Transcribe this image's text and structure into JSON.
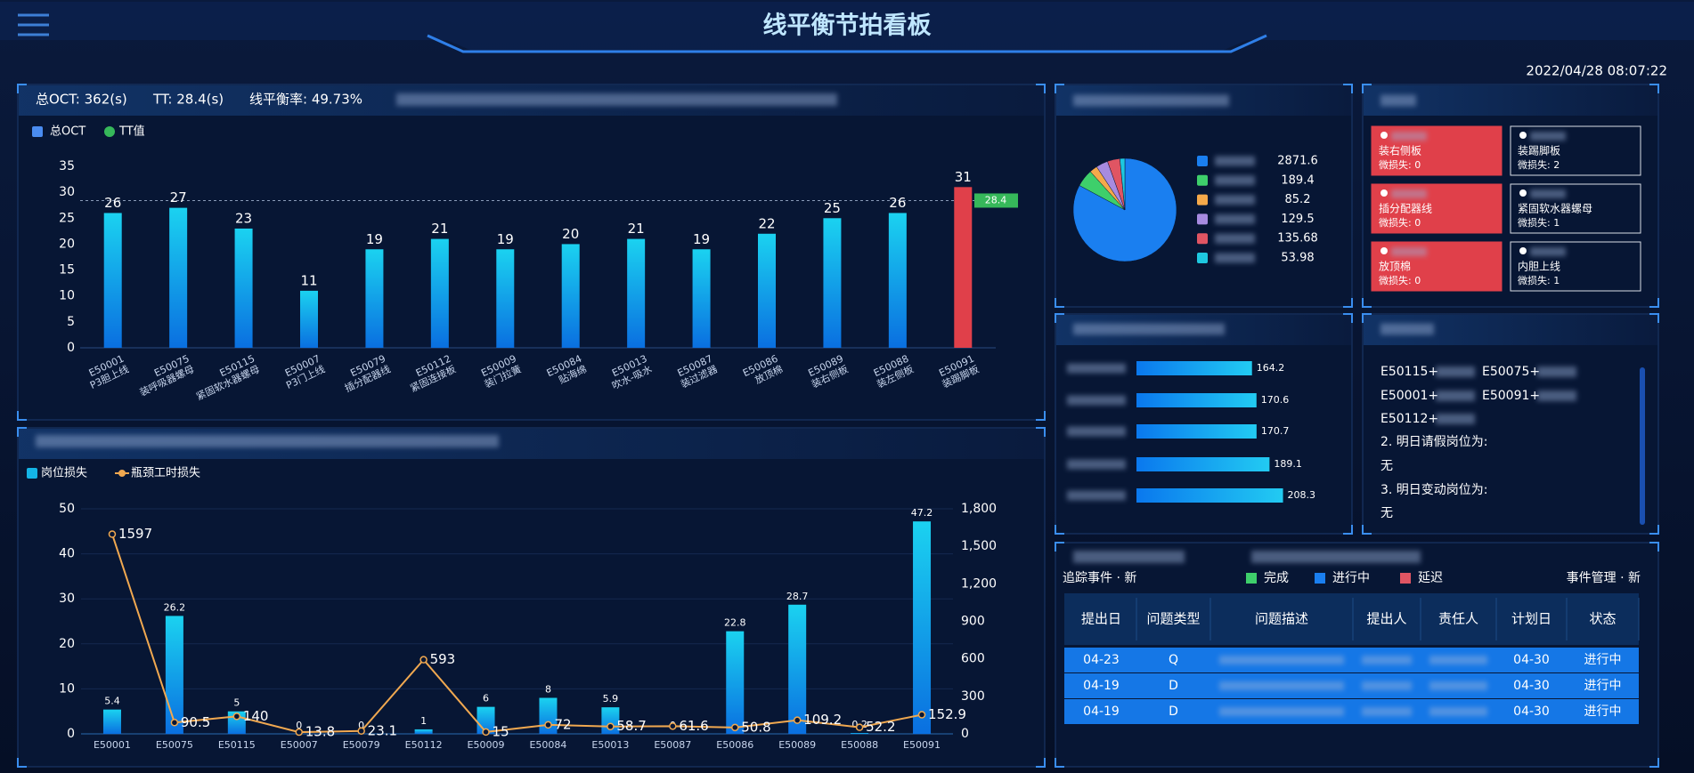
{
  "header": {
    "title": "线平衡节拍看板",
    "datetime": "2022/04/28  08:07:22"
  },
  "chart_data": [
    {
      "type": "bar",
      "stats": [
        "总OCT: 362(s)",
        "TT: 28.4(s)",
        "线平衡率: 49.73%"
      ],
      "categories": [
        "E50001",
        "E50075",
        "E50115",
        "E50007",
        "E50079",
        "E50112",
        "E50009",
        "E50084",
        "E50013",
        "E50087",
        "E50086",
        "E50089",
        "E50088",
        "E50091"
      ],
      "category_names": [
        "P3胆上线",
        "装呼吸器螺母",
        "紧固软水器螺母",
        "P3门上线",
        "插分配器线",
        "紧固连接板",
        "装门拉簧",
        "贴海绵",
        "吹水-吸水",
        "装过滤器",
        "放顶棉",
        "装右侧板",
        "装左侧板",
        "装踢脚板"
      ],
      "series": [
        {
          "name": "总OCT",
          "color": "#4a8cf0",
          "values": [
            26,
            27,
            23,
            11,
            19,
            21,
            19,
            20,
            21,
            19,
            22,
            25,
            26,
            31
          ]
        }
      ],
      "reference": {
        "name": "TT值",
        "value": 28.4,
        "color": "#36b85a"
      },
      "over_color": "#e0404a",
      "ylim": [
        0,
        35
      ],
      "yticks": [
        0,
        5,
        10,
        15,
        20,
        25,
        30,
        35
      ]
    },
    {
      "type": "bar_line",
      "categories": [
        "E50001",
        "E50075",
        "E50115",
        "E50007",
        "E50079",
        "E50112",
        "E50009",
        "E50084",
        "E50013",
        "E50087",
        "E50086",
        "E50089",
        "E50088",
        "E50091"
      ],
      "series": [
        {
          "name": "岗位损失",
          "type": "bar",
          "color": "#14b4e6",
          "values": [
            5.4,
            26.2,
            5,
            0,
            0,
            1,
            6,
            8,
            5.9,
            0,
            22.8,
            28.7,
            0.2,
            47.2
          ]
        },
        {
          "name": "瓶颈工时损失",
          "type": "line",
          "axis": "y2",
          "color": "#f0a850",
          "values": [
            1597,
            90.5,
            140,
            13.8,
            23.1,
            593,
            15,
            72,
            58.7,
            61.6,
            50.8,
            109.2,
            52.2,
            152.9
          ]
        }
      ],
      "ylim": [
        0,
        50
      ],
      "yticks": [
        0,
        10,
        20,
        30,
        40,
        50
      ],
      "y2lim": [
        0,
        1800
      ],
      "y2ticks": [
        0,
        300,
        600,
        900,
        {
          "value": 1200,
          "label": "1,200"
        },
        {
          "value": 1500,
          "label": "1,500"
        },
        {
          "value": 1800,
          "label": "1,800"
        }
      ],
      "grid": true
    },
    {
      "type": "pie",
      "values": [
        2871.6,
        189.4,
        85.2,
        129.5,
        135.68,
        53.98
      ],
      "colors": [
        "#1a7ff0",
        "#3ecf6b",
        "#f5a94a",
        "#a78be0",
        "#e05563",
        "#1ec8e0"
      ]
    },
    {
      "type": "hbar",
      "values": [
        164.2,
        170.6,
        170.7,
        189.1,
        208.3
      ],
      "color": "#1aa0f0"
    }
  ],
  "tasks": [
    {
      "name": "装右侧板",
      "loss": "微损失: 0",
      "color": "#e0404a"
    },
    {
      "name": "装踢脚板",
      "loss": "微损失: 2",
      "color": "none"
    },
    {
      "name": "插分配器线",
      "loss": "微损失: 0",
      "color": "#e0404a"
    },
    {
      "name": "紧固软水器螺母",
      "loss": "微损失: 1",
      "color": "none"
    },
    {
      "name": "放顶棉",
      "loss": "微损失: 0",
      "color": "#e0404a"
    },
    {
      "name": "内胆上线",
      "loss": "微损失: 1",
      "color": "none"
    }
  ],
  "notice": [
    [
      "E50115+",
      "E50075+"
    ],
    [
      "E50001+",
      "E50091+"
    ],
    [
      "E50112+"
    ],
    [
      "2. 明日请假岗位为:"
    ],
    [
      "无"
    ],
    [
      "3. 明日变动岗位为:"
    ],
    [
      "无"
    ]
  ],
  "pdca": {
    "left_label": "追踪事件 · 新",
    "legend": [
      {
        "name": "完成",
        "color": "#3ecf6b"
      },
      {
        "name": "进行中",
        "color": "#1a7ff0"
      },
      {
        "name": "延迟",
        "color": "#e05563"
      }
    ],
    "right_label": "事件管理 · 新",
    "columns": [
      "提出日",
      "问题类型",
      "问题描述",
      "提出人",
      "责任人",
      "计划日",
      "状态"
    ],
    "rows": [
      {
        "date": "04-23",
        "type": "Q",
        "plan": "04-30",
        "status": "进行中"
      },
      {
        "date": "04-19",
        "type": "D",
        "plan": "04-30",
        "status": "进行中"
      },
      {
        "date": "04-19",
        "type": "D",
        "plan": "04-30",
        "status": "进行中"
      }
    ]
  }
}
